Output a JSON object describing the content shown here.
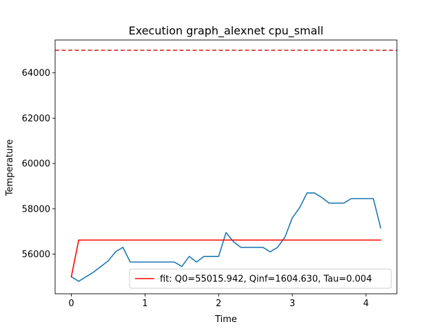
{
  "chart_data": {
    "type": "line",
    "title": "Execution graph_alexnet cpu_small",
    "xlabel": "Time",
    "ylabel": "Temperature",
    "xlim": [
      -0.22,
      4.42
    ],
    "ylim": [
      54250,
      65450
    ],
    "xticks": [
      0,
      1,
      2,
      3,
      4
    ],
    "yticks": [
      56000,
      58000,
      60000,
      62000,
      64000
    ],
    "grid": false,
    "legend_position": "lower-right",
    "threshold": {
      "value": 65000,
      "color": "#d62728",
      "style": "dashed"
    },
    "series": [
      {
        "color": "#1f77b4",
        "x": [
          0,
          0.1,
          0.2,
          0.3,
          0.4,
          0.5,
          0.6,
          0.7,
          0.8,
          0.9,
          1.0,
          1.1,
          1.2,
          1.3,
          1.4,
          1.5,
          1.6,
          1.7,
          1.8,
          1.9,
          2.0,
          2.1,
          2.2,
          2.3,
          2.4,
          2.5,
          2.6,
          2.7,
          2.8,
          2.9,
          3.0,
          3.1,
          3.2,
          3.3,
          3.4,
          3.5,
          3.6,
          3.7,
          3.8,
          3.9,
          4.0,
          4.1,
          4.2
        ],
        "y": [
          55000,
          54800,
          55000,
          55200,
          55450,
          55700,
          56100,
          56300,
          55650,
          55650,
          55650,
          55650,
          55650,
          55650,
          55650,
          55450,
          55900,
          55650,
          55900,
          55900,
          55900,
          56950,
          56550,
          56300,
          56300,
          56300,
          56300,
          56100,
          56300,
          56750,
          57600,
          58050,
          58700,
          58700,
          58500,
          58250,
          58250,
          58250,
          58450,
          58450,
          58450,
          58450,
          57150
        ]
      },
      {
        "name": "fit: Q0=55015.942, Qinf=1604.630, Tau=0.004",
        "color": "#ff0000",
        "x": [
          0,
          0.1,
          4.2
        ],
        "y": [
          55000,
          56620,
          56620
        ]
      }
    ]
  }
}
